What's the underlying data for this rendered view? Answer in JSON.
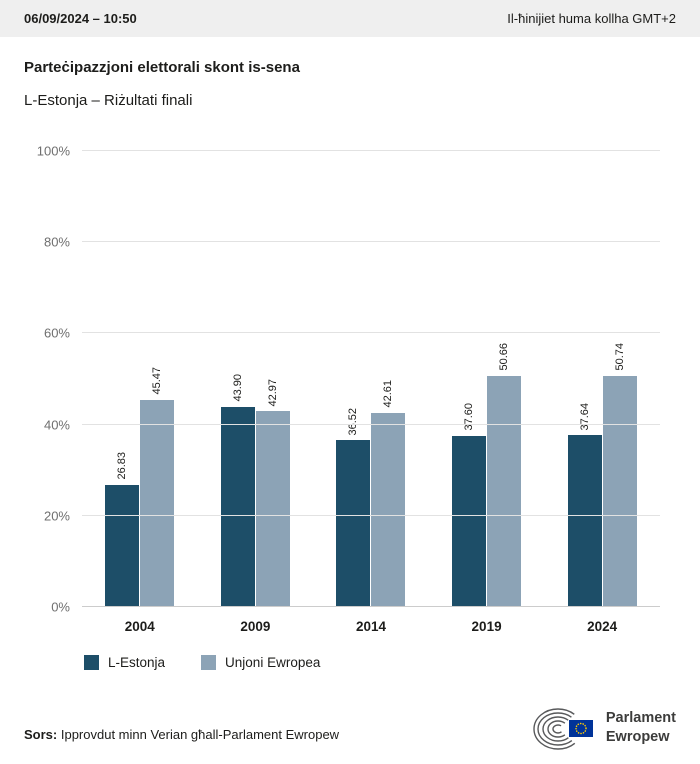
{
  "header": {
    "datetime": "06/09/2024 – 10:50",
    "timezone_note": "Il-ħinijiet huma kollha GMT+2"
  },
  "title": "Parteċipazzjoni elettorali skont is-sena",
  "subtitle": "L-Estonja – Riżultati finali",
  "chart_data": {
    "type": "bar",
    "categories": [
      "2004",
      "2009",
      "2014",
      "2019",
      "2024"
    ],
    "series": [
      {
        "name": "L-Estonja",
        "color": "#1d4e68",
        "values": [
          26.83,
          43.9,
          36.52,
          37.6,
          37.64
        ]
      },
      {
        "name": "Unjoni Ewropea",
        "color": "#8ca3b6",
        "values": [
          45.47,
          42.97,
          42.61,
          50.66,
          50.74
        ]
      }
    ],
    "title": "Parteċipazzjoni elettorali skont is-sena",
    "xlabel": "",
    "ylabel": "",
    "ylim": [
      0,
      100
    ],
    "yticks": [
      0,
      20,
      40,
      60,
      80,
      100
    ],
    "ytick_suffix": "%",
    "grid": true,
    "legend_position": "bottom",
    "value_labels": "rotated-vertical"
  },
  "legend": [
    {
      "label": "L-Estonja",
      "color": "#1d4e68"
    },
    {
      "label": "Unjoni Ewropea",
      "color": "#8ca3b6"
    }
  ],
  "footer": {
    "source_label": "Sors:",
    "source_text": "Ipprovdut minn Verian għall-Parlament Ewropew"
  },
  "logo": {
    "line1": "Parlament",
    "line2": "Ewropew"
  }
}
